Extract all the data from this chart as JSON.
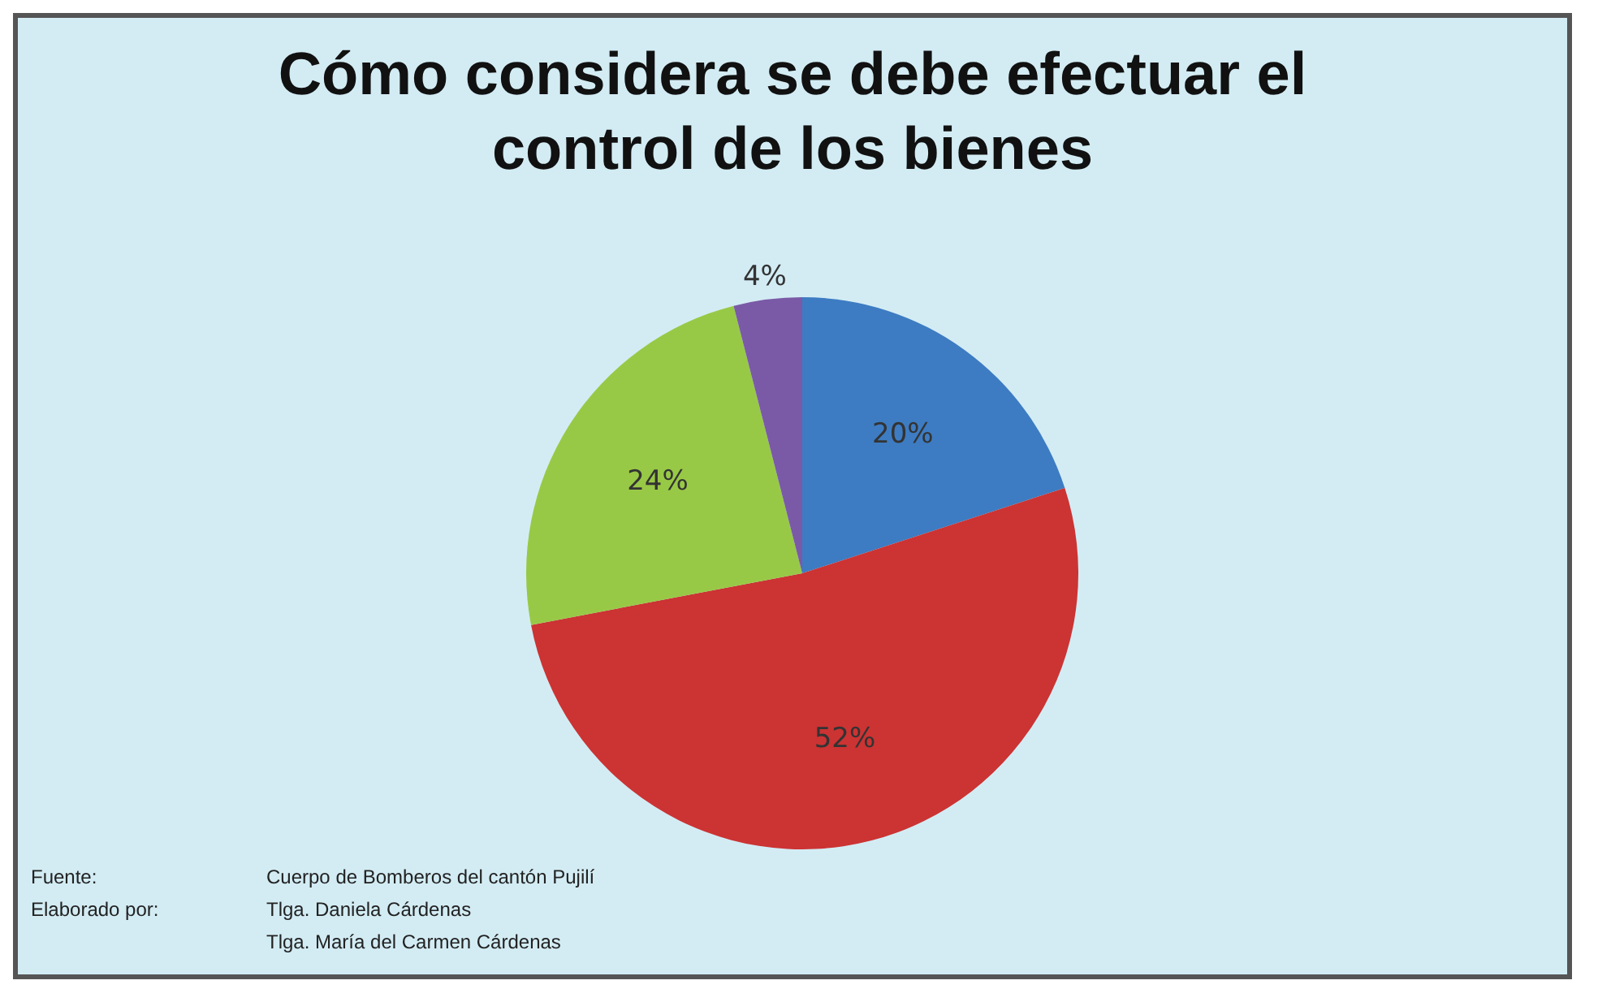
{
  "chart_data": {
    "type": "pie",
    "title": "Cómo considera se debe efectuar el control de los bienes",
    "categories": [
      null,
      null,
      null,
      null
    ],
    "values": [
      20,
      52,
      24,
      4
    ],
    "colors": [
      "#3d7cc2",
      "#cc3333",
      "#98c946",
      "#7a5aa6"
    ],
    "value_labels": [
      "20%",
      "52%",
      "24%",
      "4%"
    ],
    "legend": false,
    "annotations": [
      "Fuente:",
      "Cuerpo de Bomberos del cantón Pujilí",
      "Elaborado por:",
      "Tlga. Daniela Cárdenas",
      "Tlga. María del Carmen Cárdenas"
    ]
  }
}
